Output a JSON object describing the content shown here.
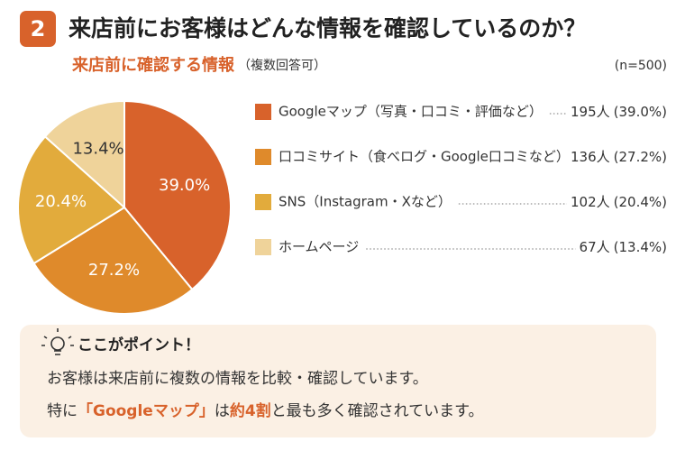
{
  "header": {
    "badge": "2",
    "title": "来店前にお客様はどんな情報を確認しているのか？"
  },
  "chart_data": {
    "type": "pie",
    "title": "来店前に確認する情報",
    "subtitle": "（複数回答可）",
    "note": "(n=500)",
    "categories": [
      "Googleマップ（写真・口コミ・評価など）",
      "口コミサイト（食べログ・Google口コミなど）",
      "SNS（Instagram・Xなど）",
      "ホームページ"
    ],
    "values": [
      39.0,
      27.2,
      20.4,
      13.4
    ],
    "value_labels": [
      "39.0%",
      "27.2%",
      "20.4%",
      "13.4%"
    ],
    "counts": [
      195,
      136,
      102,
      67
    ],
    "count_labels": [
      "195人",
      "136人",
      "102人",
      "67人"
    ],
    "legend_value_labels": [
      "(39.0%)",
      "(27.2%)",
      "(20.4%)",
      "(13.4%)"
    ],
    "colors": [
      "#d8622b",
      "#df8a2b",
      "#e2ab3c",
      "#efd39a"
    ]
  },
  "callout": {
    "title": "ここがポイント！",
    "line1": "お客様は来店前に複数の情報を比較・確認しています。",
    "line2": [
      {
        "text": "特に"
      },
      {
        "text": "「Googleマップ」",
        "emphasis": true
      },
      {
        "text": "は"
      },
      {
        "text": "約4割",
        "emphasis": true
      },
      {
        "text": "と最も多く確認されています。"
      }
    ]
  }
}
